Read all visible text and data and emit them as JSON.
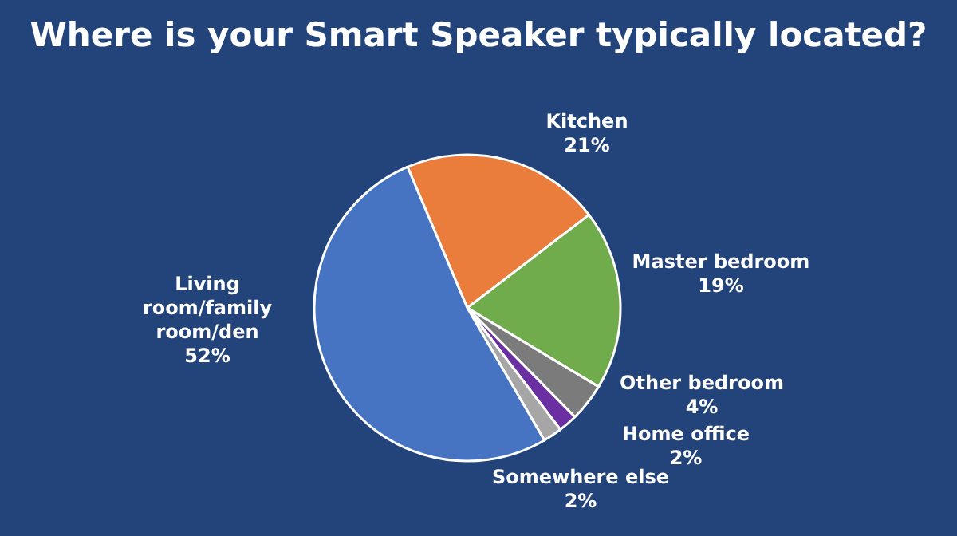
{
  "chart_data": {
    "type": "pie",
    "title": "Where is your Smart Speaker typically located?",
    "categories": [
      "Kitchen",
      "Master bedroom",
      "Other bedroom",
      "Home office",
      "Somewhere else",
      "Living room/family room/den"
    ],
    "values": [
      21,
      19,
      4,
      2,
      2,
      52
    ],
    "value_labels": [
      "21%",
      "19%",
      "4%",
      "2%",
      "2%",
      "52%"
    ],
    "colors": [
      "#ea7c3c",
      "#70ab4c",
      "#7b7b7b",
      "#6a2fa0",
      "#a6a6a6",
      "#4674c2"
    ]
  }
}
